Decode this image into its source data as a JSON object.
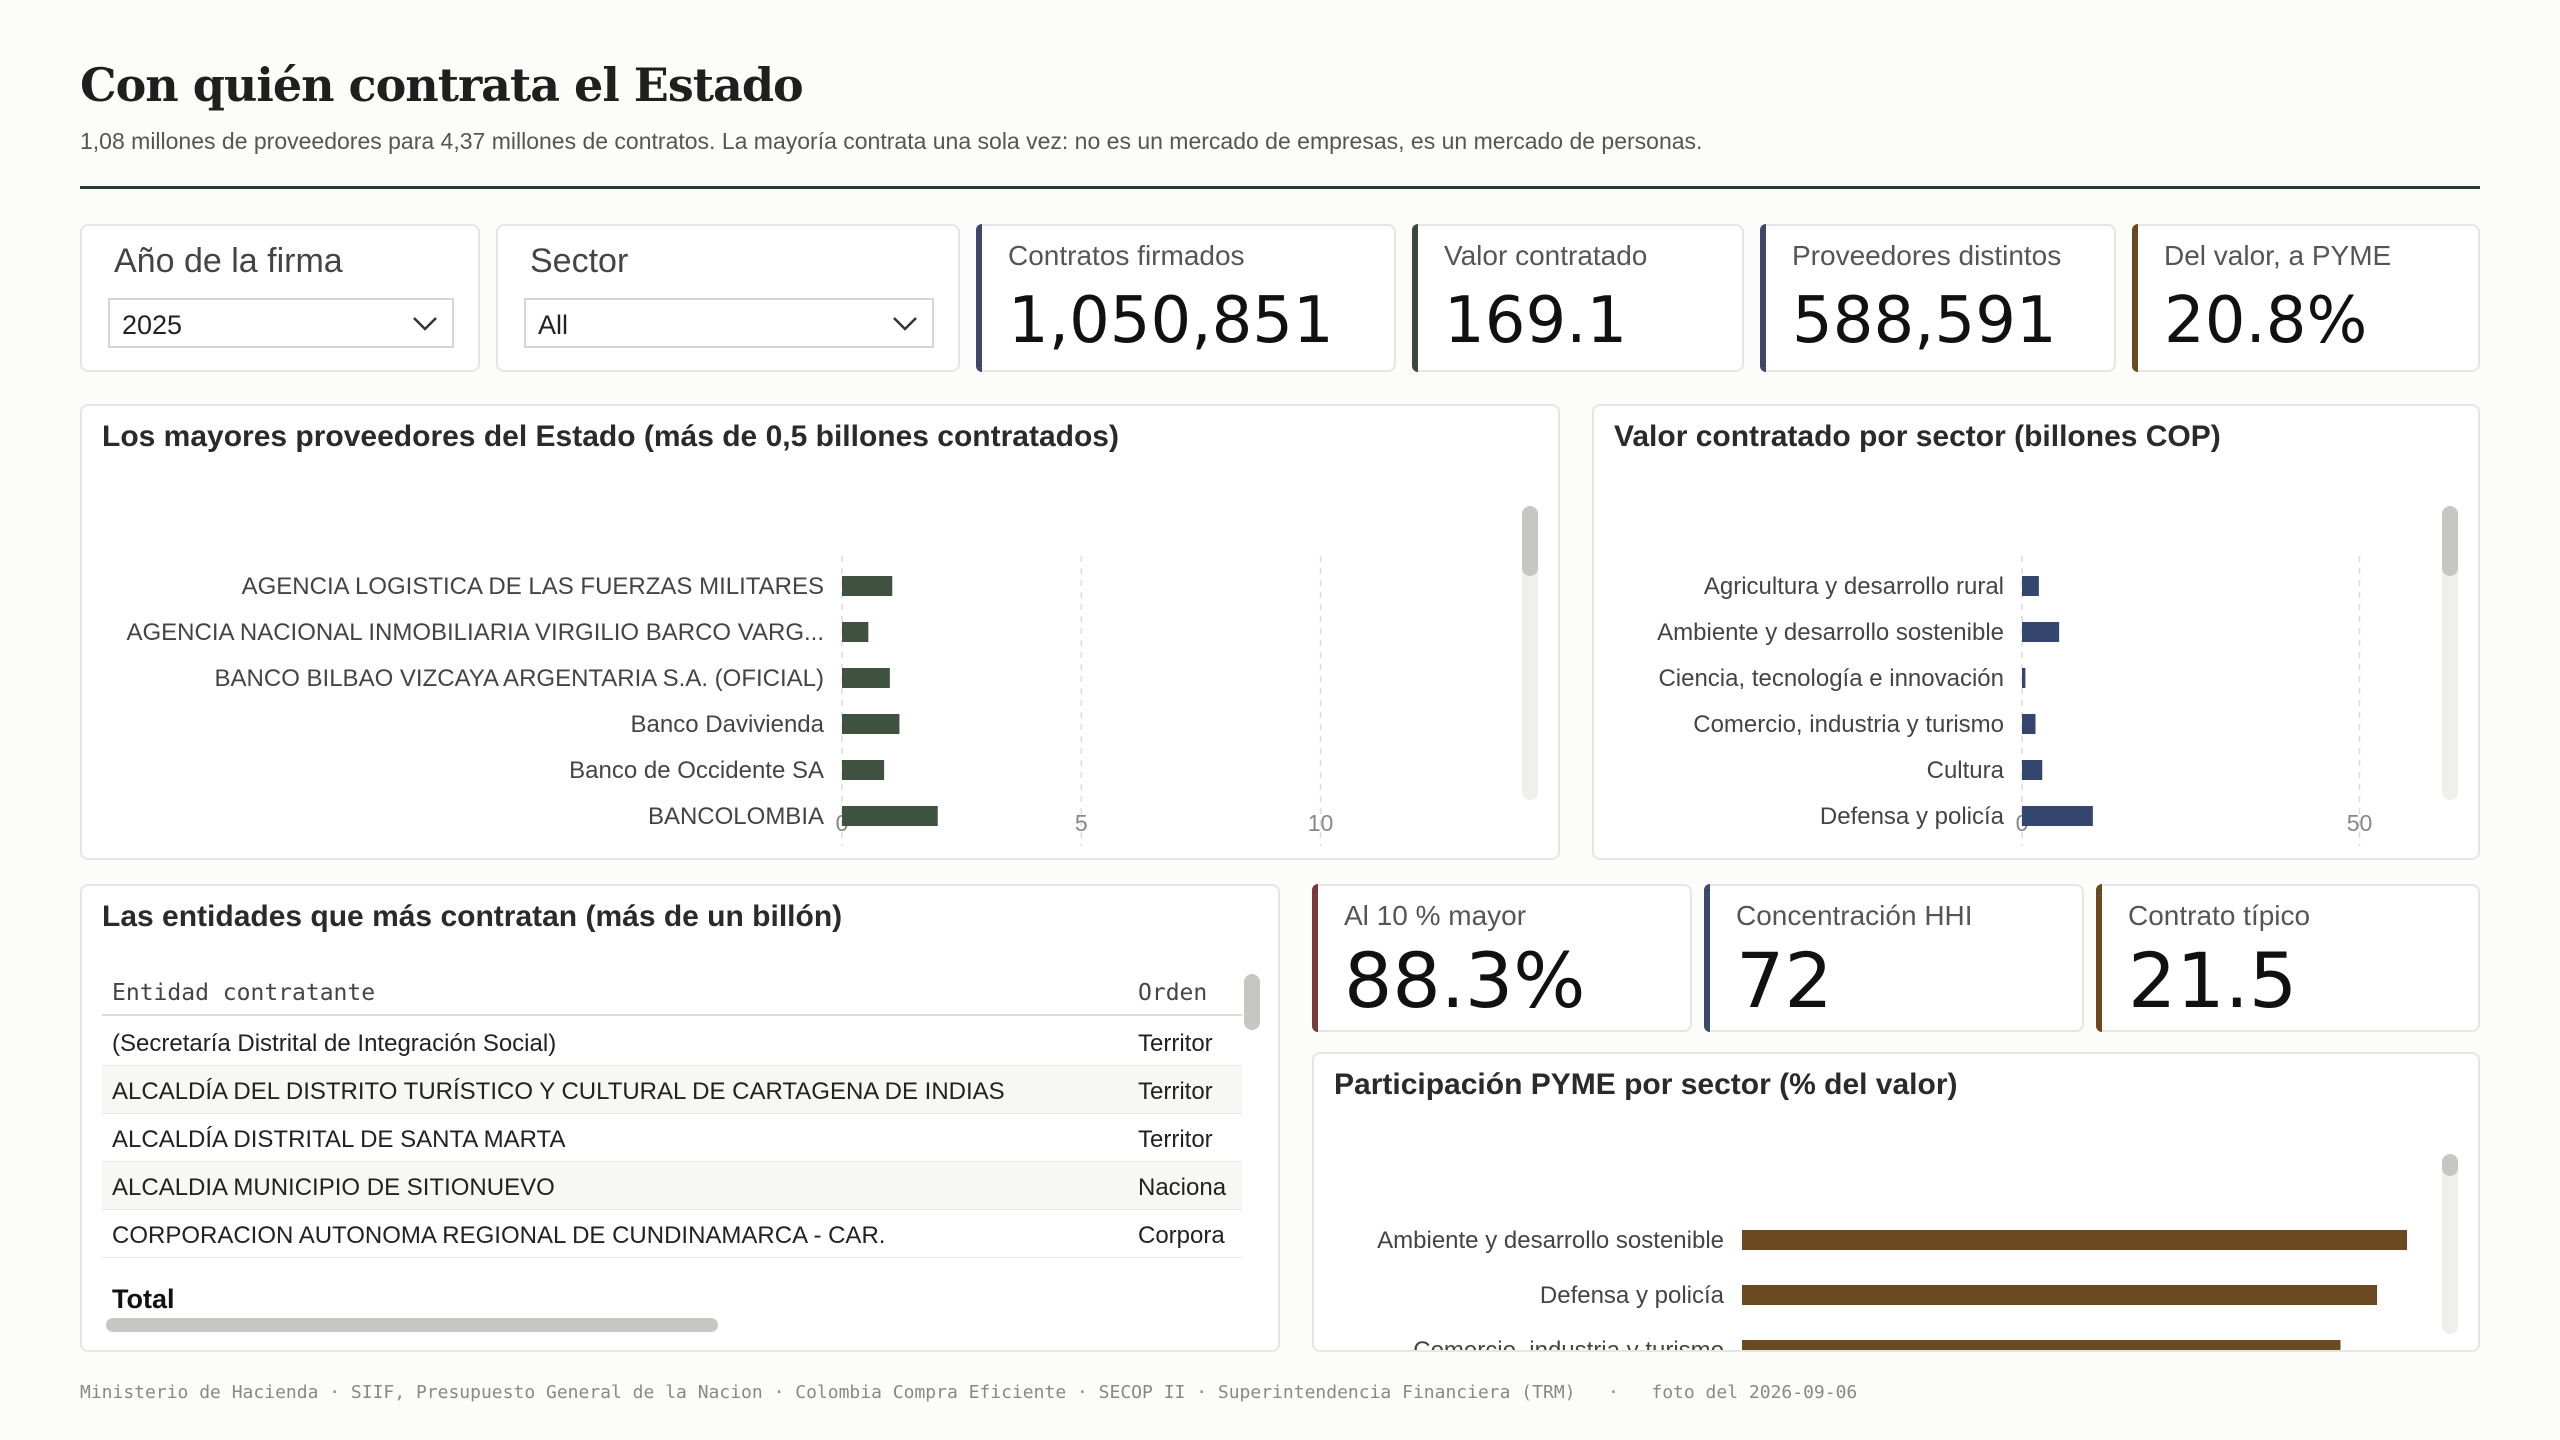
{
  "header": {
    "title": "Con quién contrata el Estado",
    "subtitle": "1,08 millones de proveedores para 4,37 millones de contratos. La mayoría contrata una sola vez: no es un mercado de empresas, es un mercado de personas."
  },
  "slicers": {
    "year": {
      "label": "Año de la firma",
      "value": "2025"
    },
    "sector": {
      "label": "Sector",
      "value": "All"
    }
  },
  "kpis_top": [
    {
      "label": "Contratos firmados",
      "value": "1,050,851",
      "accent": "#3b4a6b"
    },
    {
      "label": "Valor contratado",
      "value": "169.1",
      "accent": "#3a4a3a"
    },
    {
      "label": "Proveedores distintos",
      "value": "588,591",
      "accent": "#3b4a6b"
    },
    {
      "label": "Del valor, a PYME",
      "value": "20.8%",
      "accent": "#6b4a22"
    }
  ],
  "kpis_mid": [
    {
      "label": "Al 10 % mayor",
      "value": "88.3%",
      "accent": "#7a3a3a"
    },
    {
      "label": "Concentración HHI",
      "value": "72",
      "accent": "#3b4a6b"
    },
    {
      "label": "Contrato típico",
      "value": "21.5",
      "accent": "#6b4a22"
    }
  ],
  "providers_chart": {
    "title": "Los mayores proveedores del Estado (más de 0,5 billones contratados)",
    "color": "#3f5240",
    "chart_data": {
      "type": "bar",
      "orientation": "horizontal",
      "categories": [
        "AGENCIA LOGISTICA DE LAS FUERZAS MILITARES",
        "AGENCIA NACIONAL INMOBILIARIA VIRGILIO BARCO VARG...",
        "BANCO BILBAO VIZCAYA ARGENTARIA S.A. (OFICIAL)",
        "Banco Davivienda",
        "Banco de Occidente SA",
        "BANCOLOMBIA"
      ],
      "values": [
        1.05,
        0.55,
        1.0,
        1.2,
        0.88,
        2.0
      ],
      "xlim": [
        0,
        14
      ],
      "ticks": [
        "0",
        "5",
        "10"
      ],
      "tick_values": [
        0,
        5,
        10
      ],
      "grid": true
    }
  },
  "sector_chart": {
    "title": "Valor contratado por sector (billones COP)",
    "color": "#34466e",
    "chart_data": {
      "type": "bar",
      "orientation": "horizontal",
      "categories": [
        "Agricultura y desarrollo rural",
        "Ambiente y desarrollo sostenible",
        "Ciencia, tecnología e innovación",
        "Comercio, industria y turismo",
        "Cultura",
        "Defensa y policía"
      ],
      "values": [
        2.5,
        5.5,
        0.5,
        2.0,
        3.0,
        10.5
      ],
      "xlim": [
        0,
        60
      ],
      "ticks": [
        "0",
        "50"
      ],
      "tick_values": [
        0,
        50
      ],
      "grid": true
    }
  },
  "entities_table": {
    "title": "Las entidades que más contratan (más de un billón)",
    "columns": [
      "Entidad contratante",
      "Orden"
    ],
    "rows": [
      [
        "(Secretaría Distrital de Integración Social)",
        "Territor"
      ],
      [
        "ALCALDÍA DEL DISTRITO TURÍSTICO Y CULTURAL DE CARTAGENA DE INDIAS",
        "Territor"
      ],
      [
        "ALCALDÍA DISTRITAL DE SANTA MARTA",
        "Territor"
      ],
      [
        "ALCALDIA MUNICIPIO DE SITIONUEVO",
        "Naciona"
      ],
      [
        "CORPORACION AUTONOMA REGIONAL DE CUNDINAMARCA - CAR.",
        "Corpora"
      ]
    ],
    "total_label": "Total"
  },
  "pyme_chart": {
    "title": "Participación PYME por sector (% del valor)",
    "color": "#6b4a22",
    "chart_data": {
      "type": "bar",
      "orientation": "horizontal",
      "categories": [
        "Ambiente y desarrollo sostenible",
        "Defensa y policía",
        "Comercio, industria y turismo"
      ],
      "values": [
        100,
        95.5,
        90
      ],
      "xlim": [
        0,
        100
      ]
    }
  },
  "footer": {
    "sources": "Ministerio de Hacienda · SIIF, Presupuesto General de la Nacion · Colombia Compra Eficiente · SECOP II · Superintendencia Financiera (TRM)",
    "snapshot": "foto del 2026-09-06"
  }
}
